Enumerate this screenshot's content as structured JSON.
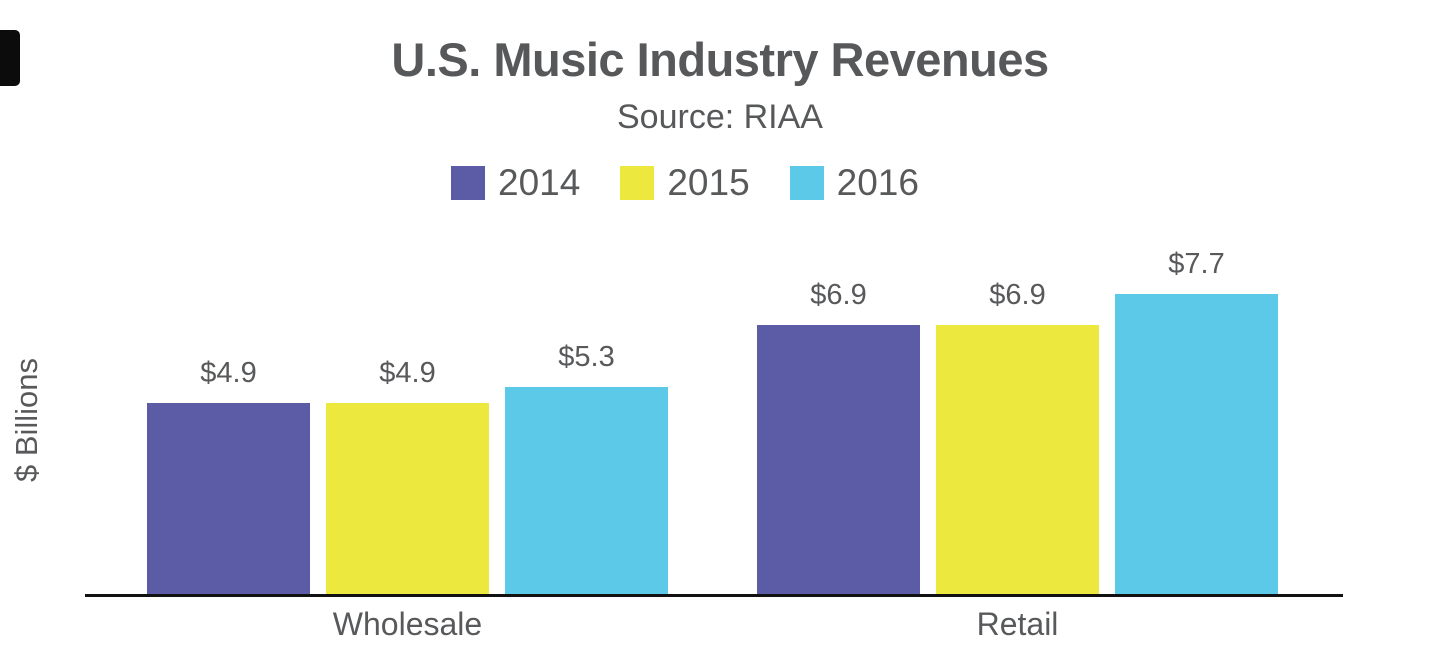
{
  "header": {
    "title": "U.S. Music Industry Revenues",
    "subtitle": "Source: RIAA"
  },
  "legend": [
    {
      "label": "2014",
      "color": "#5c5ba6"
    },
    {
      "label": "2015",
      "color": "#ede83e"
    },
    {
      "label": "2016",
      "color": "#5cc9e8"
    }
  ],
  "chart_data": {
    "type": "bar",
    "title": "U.S. Music Industry Revenues",
    "subtitle": "Source: RIAA",
    "ylabel": "$ Billions",
    "xlabel": "",
    "categories": [
      "Wholesale",
      "Retail"
    ],
    "series": [
      {
        "name": "2014",
        "color": "#5c5ba6",
        "values": [
          4.9,
          6.9
        ]
      },
      {
        "name": "2015",
        "color": "#ede83e",
        "values": [
          4.9,
          6.9
        ]
      },
      {
        "name": "2016",
        "color": "#5cc9e8",
        "values": [
          5.3,
          7.7
        ]
      }
    ],
    "data_labels": [
      [
        "$4.9",
        "$4.9",
        "$5.3"
      ],
      [
        "$6.9",
        "$6.9",
        "$7.7"
      ]
    ],
    "ylim": [
      0,
      8.5
    ],
    "grid": false,
    "legend_position": "top",
    "axis_color": "#111111",
    "text_color": "#58595b"
  }
}
